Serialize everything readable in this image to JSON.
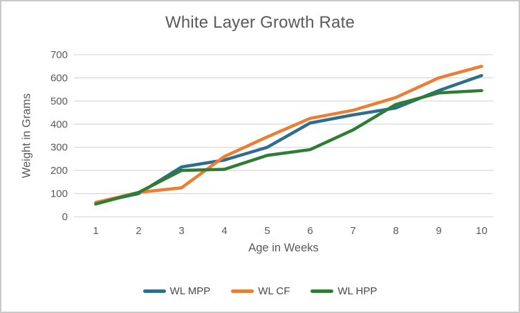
{
  "chart_data": {
    "type": "line",
    "title": "White Layer Growth Rate",
    "xlabel": "Age in Weeks",
    "ylabel": "Weight in Grams",
    "x": [
      1,
      2,
      3,
      4,
      5,
      6,
      7,
      8,
      9,
      10
    ],
    "y_ticks": [
      0,
      100,
      200,
      300,
      400,
      500,
      600,
      700
    ],
    "ylim": [
      0,
      700
    ],
    "grid": "horizontal",
    "legend_position": "bottom",
    "series": [
      {
        "name": "WL MPP",
        "color": "#2c6e8f",
        "values": [
          60,
          100,
          215,
          245,
          300,
          405,
          440,
          470,
          545,
          610
        ]
      },
      {
        "name": "WL CF",
        "color": "#ed7d31",
        "values": [
          62,
          105,
          125,
          260,
          345,
          425,
          460,
          515,
          600,
          650
        ]
      },
      {
        "name": "WL HPP",
        "color": "#2e7d32",
        "values": [
          55,
          105,
          200,
          205,
          265,
          290,
          375,
          485,
          535,
          545
        ]
      }
    ],
    "style": {
      "grid_color": "#d9d9d9",
      "axis_text_color": "#595959",
      "legend_text_color": "#474747",
      "frame_border_color": "#c9c9c9"
    }
  }
}
